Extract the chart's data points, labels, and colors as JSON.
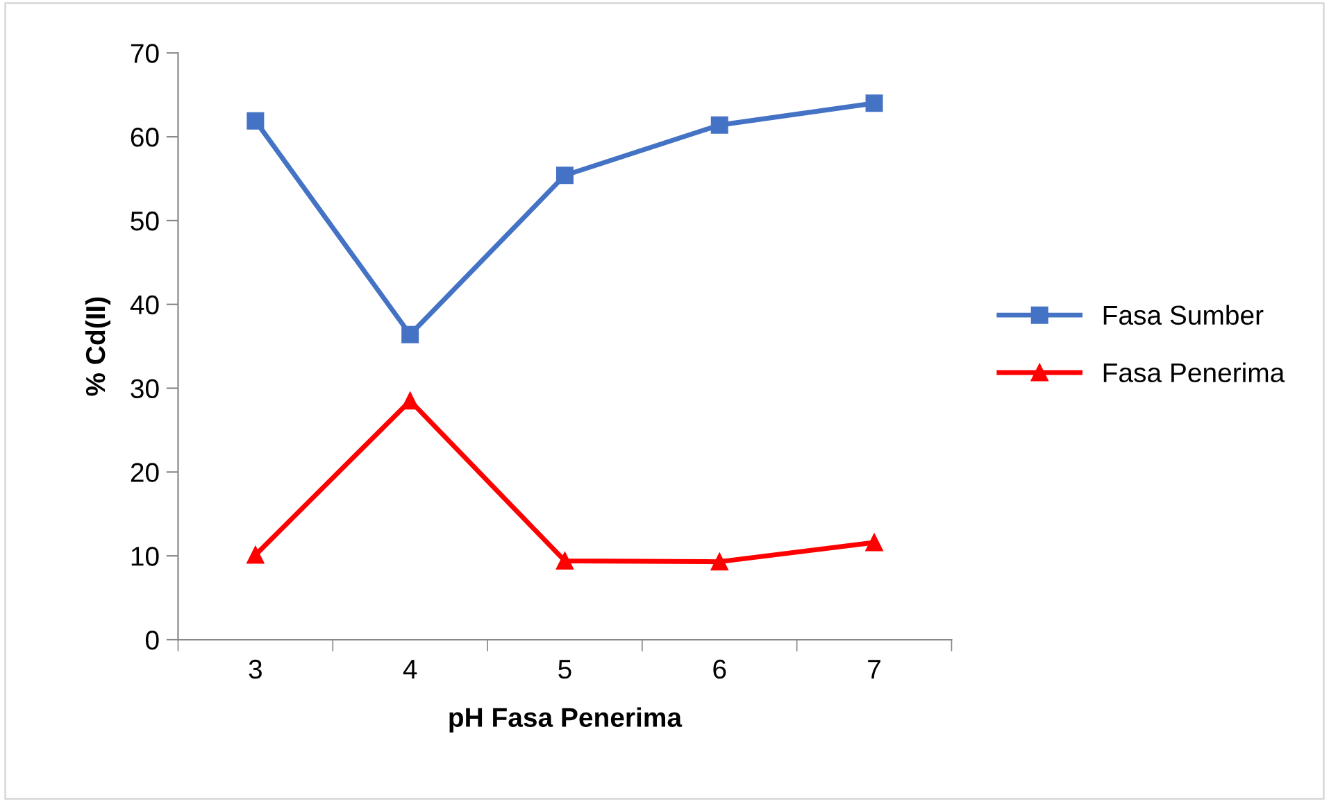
{
  "chart_data": {
    "type": "line",
    "xlabel": "pH Fasa Penerima",
    "ylabel": "% Cd(II)",
    "categories": [
      "3",
      "4",
      "5",
      "6",
      "7"
    ],
    "series": [
      {
        "name": "Fasa Sumber",
        "color": "#4472c4",
        "marker": "square",
        "values": [
          61.9,
          36.4,
          55.4,
          61.4,
          64.0
        ]
      },
      {
        "name": "Fasa Penerima",
        "color": "#ff0000",
        "marker": "triangle",
        "values": [
          10.1,
          28.5,
          9.4,
          9.3,
          11.6
        ]
      }
    ],
    "ylim": [
      0,
      70
    ],
    "yticks": [
      0,
      10,
      20,
      30,
      40,
      50,
      60,
      70
    ],
    "grid": false,
    "legend": "right",
    "line_style": "solid"
  }
}
